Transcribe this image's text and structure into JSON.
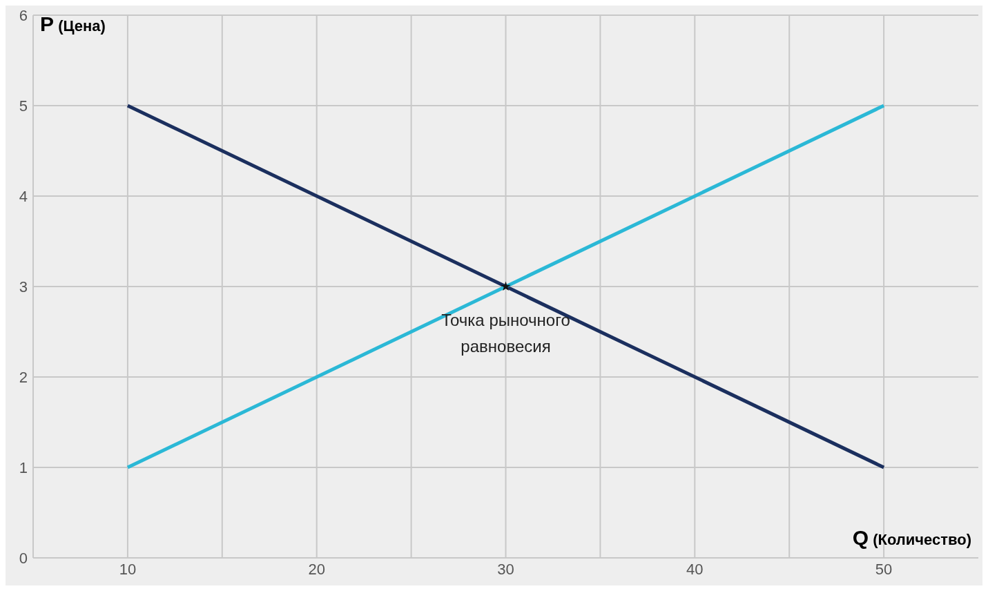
{
  "chart_data": {
    "type": "line",
    "xlabel": "Q (Количество)",
    "ylabel": "P (Цена)",
    "xlim": [
      5,
      55
    ],
    "xticks": [
      10,
      {
        "value": 15,
        "label": null
      },
      20,
      {
        "value": 25,
        "label": null
      },
      30,
      {
        "value": 35,
        "label": null
      },
      40,
      {
        "value": 45,
        "label": null
      },
      50
    ],
    "ylim": [
      0,
      6
    ],
    "yticks": [
      0,
      1,
      2,
      3,
      4,
      5,
      6
    ],
    "grid": true,
    "marker": "none",
    "line_style": "solid",
    "series": [
      {
        "color": "#1b2f5e",
        "x": [
          10,
          50
        ],
        "values": [
          5,
          1
        ]
      },
      {
        "color": "#2bb8d6",
        "x": [
          10,
          50
        ],
        "values": [
          1,
          5
        ]
      },
      {
        "type": "scatter",
        "marker": "star",
        "color": "#111111",
        "x": [
          30
        ],
        "values": [
          3
        ]
      }
    ],
    "annotations": [
      {
        "text": "Точка рыночного равновесия",
        "x": 30,
        "y": 3
      }
    ]
  }
}
